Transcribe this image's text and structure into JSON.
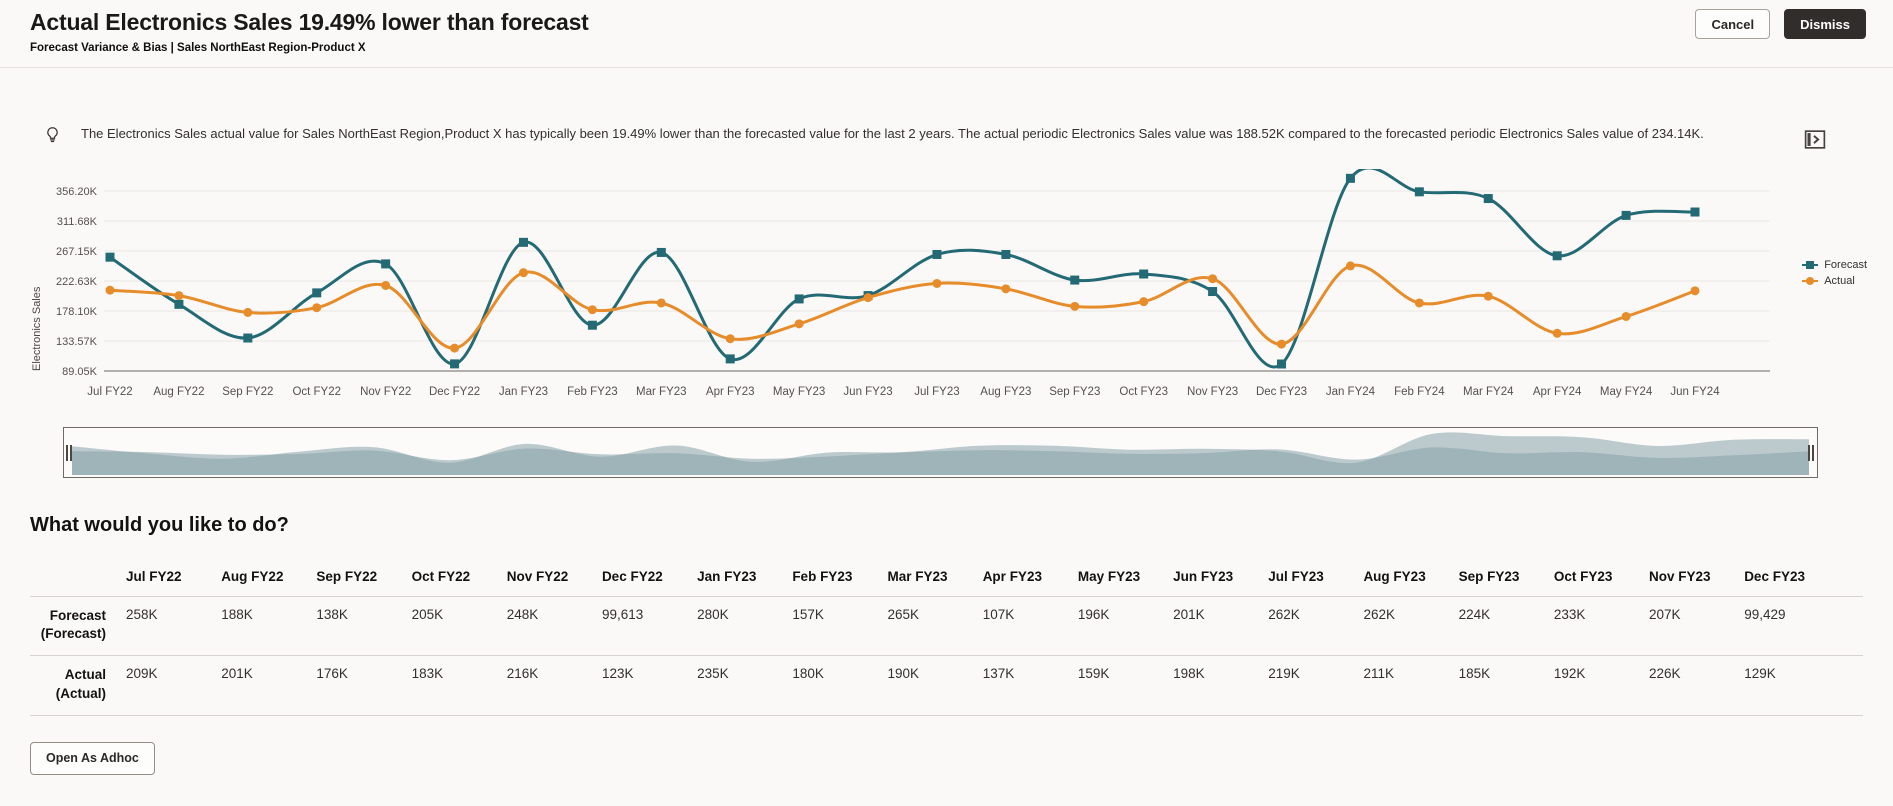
{
  "header": {
    "title": "Actual Electronics Sales 19.49% lower than forecast",
    "subtitle": "Forecast Variance & Bias | Sales NorthEast Region-Product X",
    "cancel_label": "Cancel",
    "dismiss_label": "Dismiss"
  },
  "insight": {
    "text": "The Electronics Sales actual value for Sales NorthEast Region,Product X has typically been 19.49% lower than the forecasted value for the last 2 years. The actual periodic Electronics Sales value was 188.52K compared to the forecasted periodic Electronics Sales value of 234.14K."
  },
  "chart_data": {
    "type": "line",
    "title": "",
    "xlabel": "",
    "ylabel": "Electronics Sales",
    "legend_position": "right",
    "grid": true,
    "x": [
      "Jul FY22",
      "Aug FY22",
      "Sep FY22",
      "Oct FY22",
      "Nov FY22",
      "Dec FY22",
      "Jan FY23",
      "Feb FY23",
      "Mar FY23",
      "Apr FY23",
      "May FY23",
      "Jun FY23",
      "Jul FY23",
      "Aug FY23",
      "Sep FY23",
      "Oct FY23",
      "Nov FY23",
      "Dec FY23",
      "Jan FY24",
      "Feb FY24",
      "Mar FY24",
      "Apr FY24",
      "May FY24",
      "Jun FY24"
    ],
    "y_ticks": [
      {
        "label": "356.20K",
        "value": 356200
      },
      {
        "label": "311.68K",
        "value": 311680
      },
      {
        "label": "267.15K",
        "value": 267150
      },
      {
        "label": "222.63K",
        "value": 222630
      },
      {
        "label": "178.10K",
        "value": 178100
      },
      {
        "label": "133.57K",
        "value": 133570
      },
      {
        "label": "89.05K",
        "value": 89050
      }
    ],
    "series": [
      {
        "name": "Forecast",
        "color": "#236A74",
        "marker": "square",
        "values": [
          258000,
          188000,
          138000,
          205000,
          248000,
          99613,
          280000,
          157000,
          265000,
          107000,
          196000,
          201000,
          262000,
          262000,
          224000,
          233000,
          207000,
          99429,
          375000,
          355000,
          345000,
          260000,
          320000,
          325000
        ]
      },
      {
        "name": "Actual",
        "color": "#E78C2A",
        "marker": "circle",
        "values": [
          209000,
          201000,
          176000,
          183000,
          216000,
          123000,
          235000,
          180000,
          190000,
          137000,
          159000,
          198000,
          219000,
          211000,
          185000,
          192000,
          226000,
          129000,
          245000,
          190000,
          200000,
          145000,
          170000,
          208000
        ]
      }
    ]
  },
  "actions": {
    "heading": "What would you like to do?",
    "table": {
      "columns": [
        "Jul FY22",
        "Aug FY22",
        "Sep FY22",
        "Oct FY22",
        "Nov FY22",
        "Dec FY22",
        "Jan FY23",
        "Feb FY23",
        "Mar FY23",
        "Apr FY23",
        "May FY23",
        "Jun FY23",
        "Jul FY23",
        "Aug FY23",
        "Sep FY23",
        "Oct FY23",
        "Nov FY23",
        "Dec FY23"
      ],
      "rows": [
        {
          "label_line1": "Forecast",
          "label_line2": "(Forecast)",
          "values": [
            "258K",
            "188K",
            "138K",
            "205K",
            "248K",
            "99,613",
            "280K",
            "157K",
            "265K",
            "107K",
            "196K",
            "201K",
            "262K",
            "262K",
            "224K",
            "233K",
            "207K",
            "99,429"
          ]
        },
        {
          "label_line1": "Actual",
          "label_line2": "(Actual)",
          "values": [
            "209K",
            "201K",
            "176K",
            "183K",
            "216K",
            "123K",
            "235K",
            "180K",
            "190K",
            "137K",
            "159K",
            "198K",
            "219K",
            "211K",
            "185K",
            "192K",
            "226K",
            "129K"
          ]
        }
      ]
    },
    "open_adhoc_label": "Open As Adhoc"
  },
  "colors": {
    "forecast": "#236A74",
    "actual": "#E78C2A",
    "grid_line": "#E9E6E2",
    "axis_line": "#6B6660",
    "overview_fill": "#87A2A7",
    "dismiss_bg": "#312D2A"
  }
}
